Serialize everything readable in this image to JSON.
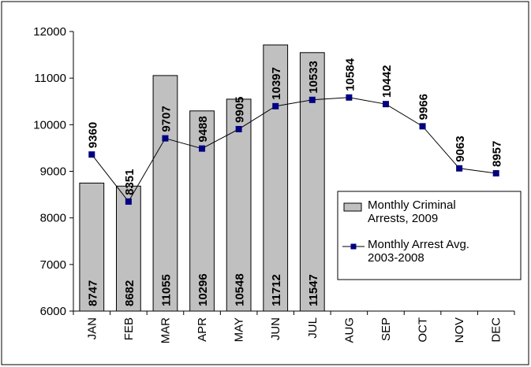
{
  "chart_data": {
    "type": "bar",
    "categories": [
      "JAN",
      "FEB",
      "MAR",
      "APR",
      "MAY",
      "JUN",
      "JUL",
      "AUG",
      "SEP",
      "OCT",
      "NOV",
      "DEC"
    ],
    "series": [
      {
        "name": "Monthly Criminal Arrests, 2009",
        "type": "bar",
        "color": "#c0c0c0",
        "values": [
          8747,
          8682,
          11055,
          10296,
          10548,
          11712,
          11547,
          null,
          null,
          null,
          null,
          null
        ]
      },
      {
        "name": "Monthly Arrest Avg. 2003-2008",
        "type": "line",
        "color": "#000080",
        "values": [
          9360,
          8351,
          9707,
          9488,
          9905,
          10397,
          10533,
          10584,
          10442,
          9966,
          9063,
          8957
        ]
      }
    ],
    "ylim": [
      6000,
      12000
    ],
    "yticks": [
      6000,
      7000,
      8000,
      9000,
      10000,
      11000,
      12000
    ],
    "grid": false,
    "legend": "right"
  }
}
